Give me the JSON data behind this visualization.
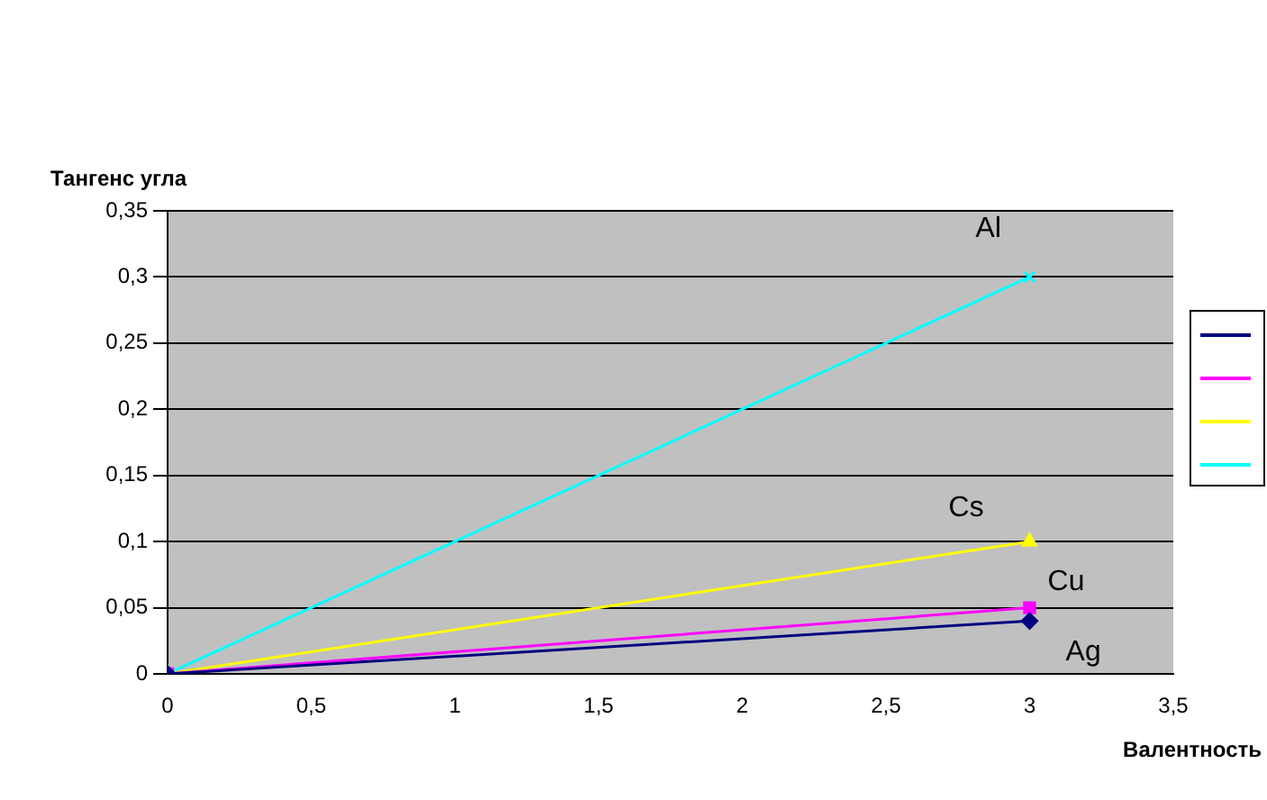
{
  "chart_data": {
    "type": "line",
    "xlabel": "Валентность",
    "ylabel": "Тангенс угла",
    "x": [
      0,
      3
    ],
    "series": [
      {
        "name": "Ag",
        "color": "#000080",
        "values": [
          0,
          0.04
        ],
        "marker": "diamond"
      },
      {
        "name": "Cu",
        "color": "#ff00ff",
        "values": [
          0,
          0.05
        ],
        "marker": "square"
      },
      {
        "name": "Cs",
        "color": "#ffff00",
        "values": [
          0,
          0.1
        ],
        "marker": "triangle"
      },
      {
        "name": "Al",
        "color": "#00ffff",
        "values": [
          0,
          0.3
        ],
        "marker": "cross"
      }
    ],
    "xlim": [
      0,
      3.5
    ],
    "xticks": [
      {
        "value": 0,
        "label": "0"
      },
      {
        "value": 0.5,
        "label": "0,5"
      },
      {
        "value": 1,
        "label": "1"
      },
      {
        "value": 1.5,
        "label": "1,5"
      },
      {
        "value": 2,
        "label": "2"
      },
      {
        "value": 2.5,
        "label": "2,5"
      },
      {
        "value": 3,
        "label": "3"
      },
      {
        "value": 3.5,
        "label": "3,5"
      }
    ],
    "ylim": [
      0,
      0.35
    ],
    "yticks": [
      {
        "value": 0,
        "label": "0"
      },
      {
        "value": 0.05,
        "label": "0,05"
      },
      {
        "value": 0.1,
        "label": "0,1"
      },
      {
        "value": 0.15,
        "label": "0,15"
      },
      {
        "value": 0.2,
        "label": "0,2"
      },
      {
        "value": 0.25,
        "label": "0,25"
      },
      {
        "value": 0.3,
        "label": "0,3"
      },
      {
        "value": 0.35,
        "label": "0,35"
      }
    ],
    "grid": "y",
    "legend": "right"
  }
}
